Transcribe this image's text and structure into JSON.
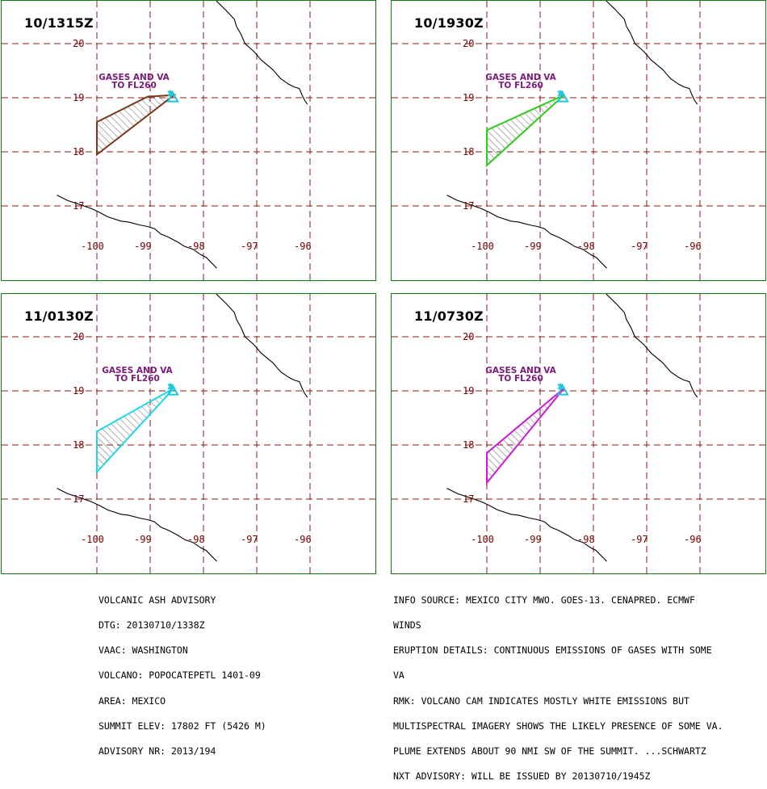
{
  "grid": {
    "lat_ticks": [
      20,
      19,
      18,
      17
    ],
    "lon_ticks": [
      -100,
      -99,
      -98,
      -97,
      -96
    ]
  },
  "colors": {
    "border": "#137a13",
    "grid": "#8b1a1a",
    "label": "#7a0000",
    "volcano": "#1ec8d8",
    "coast": "#000000",
    "plume_label": "#7a1a7a"
  },
  "panels": [
    {
      "time": "10/1315Z",
      "plume_color": "#7a3a18",
      "plume_label": [
        "GASES AND VA",
        "TO FL260"
      ],
      "polygon": [
        [
          -98.55,
          19.05
        ],
        [
          -99.05,
          19.02
        ],
        [
          -100.0,
          18.55
        ],
        [
          -100.0,
          17.95
        ],
        [
          -98.55,
          19.05
        ]
      ]
    },
    {
      "time": "10/1930Z",
      "plume_color": "#2ecc1a",
      "plume_label": [
        "GASES AND VA",
        "TO FL260"
      ],
      "polygon": [
        [
          -98.55,
          19.05
        ],
        [
          -100.0,
          18.4
        ],
        [
          -100.0,
          17.75
        ],
        [
          -98.55,
          19.05
        ]
      ]
    },
    {
      "time": "11/0130Z",
      "plume_color": "#1ed8e8",
      "plume_label": [
        "GASES AND VA",
        "TO FL260"
      ],
      "polygon": [
        [
          -98.55,
          19.05
        ],
        [
          -100.0,
          18.25
        ],
        [
          -100.0,
          17.5
        ],
        [
          -98.55,
          19.05
        ]
      ]
    },
    {
      "time": "11/0730Z",
      "plume_color": "#cc1ad8",
      "plume_label": [
        "GASES AND VA",
        "TO FL260"
      ],
      "polygon": [
        [
          -98.55,
          19.05
        ],
        [
          -100.0,
          17.85
        ],
        [
          -100.0,
          17.3
        ],
        [
          -98.55,
          19.05
        ]
      ]
    }
  ],
  "advisory_left": [
    "VOLCANIC ASH ADVISORY",
    "DTG: 20130710/1338Z",
    "VAAC: WASHINGTON",
    "VOLCANO: POPOCATEPETL 1401-09",
    "AREA: MEXICO",
    "SUMMIT ELEV: 17802 FT (5426 M)",
    "ADVISORY NR: 2013/194"
  ],
  "advisory_right": [
    "INFO SOURCE: MEXICO CITY MWO. GOES-13. CENAPRED. ECMWF",
    "WINDS",
    "ERUPTION DETAILS: CONTINUOUS EMISSIONS OF GASES WITH SOME",
    "VA",
    "RMK: VOLCANO CAM INDICATES MOSTLY WHITE EMISSIONS BUT",
    "MULTISPECTRAL IMAGERY SHOWS THE LIKELY PRESENCE OF SOME VA.",
    "PLUME EXTENDS ABOUT 90 NMI SW OF THE SUMMIT. ...SCHWARTZ",
    "NXT ADVISORY: WILL BE ISSUED BY 20130710/1945Z"
  ]
}
